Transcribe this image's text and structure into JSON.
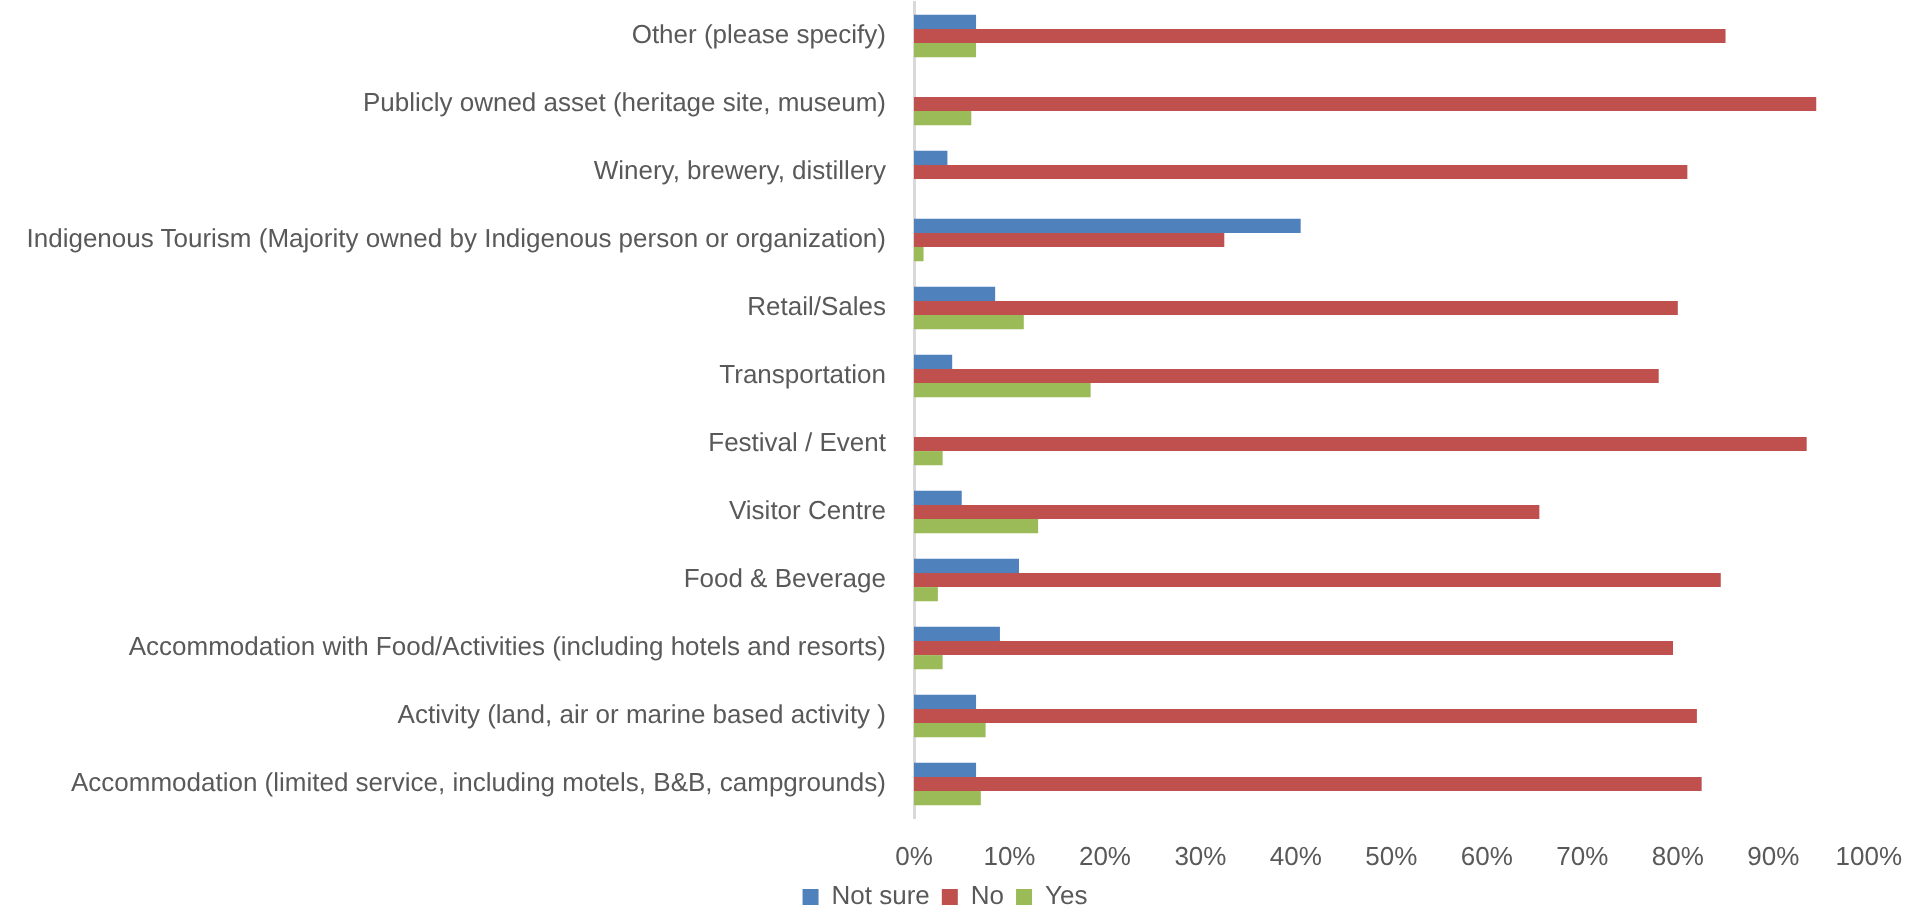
{
  "chart_data": {
    "type": "bar",
    "orientation": "horizontal",
    "categories": [
      "Other (please specify)",
      "Publicly owned asset (heritage site, museum)",
      "Winery, brewery, distillery",
      "Indigenous Tourism (Majority owned by Indigenous person or organization)",
      "Retail/Sales",
      "Transportation",
      "Festival / Event",
      "Visitor Centre",
      "Food & Beverage",
      "Accommodation with Food/Activities (including hotels and resorts)",
      "Activity (land, air or marine based activity )",
      "Accommodation (limited service, including motels, B&B, campgrounds)"
    ],
    "series": [
      {
        "name": "Not sure",
        "color": "#4f81bd",
        "values": [
          6.5,
          0,
          3.5,
          40.5,
          8.5,
          4,
          0,
          5,
          11,
          9,
          6.5,
          6.5
        ]
      },
      {
        "name": "No",
        "color": "#c0504d",
        "values": [
          85,
          94.5,
          81,
          32.5,
          80,
          78,
          93.5,
          65.5,
          84.5,
          79.5,
          82,
          82.5
        ]
      },
      {
        "name": "Yes",
        "color": "#9bbb59",
        "values": [
          6.5,
          6,
          0,
          1,
          11.5,
          18.5,
          3,
          13,
          2.5,
          3,
          7.5,
          7
        ]
      }
    ],
    "xlim": [
      0,
      100
    ],
    "xticks": [
      {
        "value": 0,
        "label": "0%"
      },
      {
        "value": 10,
        "label": "10%"
      },
      {
        "value": 20,
        "label": "20%"
      },
      {
        "value": 30,
        "label": "30%"
      },
      {
        "value": 40,
        "label": "40%"
      },
      {
        "value": 50,
        "label": "50%"
      },
      {
        "value": 60,
        "label": "60%"
      },
      {
        "value": 70,
        "label": "70%"
      },
      {
        "value": 80,
        "label": "80%"
      },
      {
        "value": 90,
        "label": "90%"
      },
      {
        "value": 100,
        "label": "100%"
      }
    ],
    "legend": "bottom"
  }
}
